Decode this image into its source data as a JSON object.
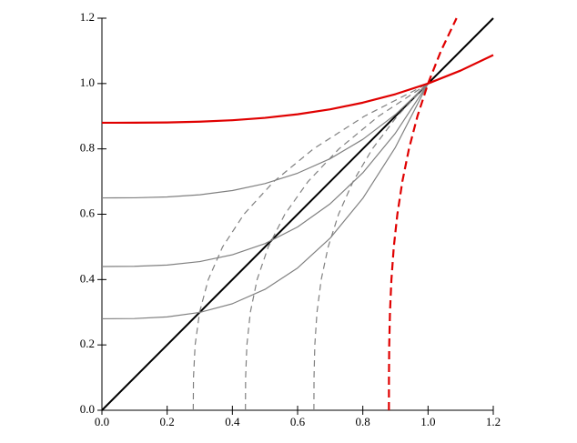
{
  "chart_data": {
    "type": "line",
    "xlim": [
      0,
      1.2
    ],
    "ylim": [
      0,
      1.2
    ],
    "xticks": [
      {
        "value": 0,
        "label": "0.0"
      },
      0.2,
      0.4,
      0.6,
      0.8,
      {
        "value": 1,
        "label": "1.0"
      },
      1.2
    ],
    "yticks": [
      {
        "value": 0,
        "label": "0.0"
      },
      0.2,
      0.4,
      0.6,
      0.8,
      {
        "value": 1,
        "label": "1.0"
      },
      1.2
    ],
    "series": [
      {
        "color": "#000000",
        "linewidth": 2,
        "dashed": false,
        "x": [
          0,
          1.2
        ],
        "values": [
          0,
          1.2
        ]
      },
      {
        "color": "#808080",
        "linewidth": 1.2,
        "dashed": false,
        "x": [
          0,
          0.1,
          0.2,
          0.3,
          0.4,
          0.5,
          0.6,
          0.7,
          0.8,
          0.9,
          1
        ],
        "values": [
          0.65,
          0.65035,
          0.6528,
          0.65945,
          0.6724,
          0.69375,
          0.7256,
          0.77005,
          0.8292,
          0.90515,
          1
        ]
      },
      {
        "color": "#808080",
        "linewidth": 1.2,
        "dashed": false,
        "x": [
          0,
          0.1,
          0.2,
          0.3,
          0.4,
          0.5,
          0.6,
          0.7,
          0.8,
          0.9,
          1
        ],
        "values": [
          0.44,
          0.44056,
          0.44448,
          0.45512,
          0.47584,
          0.51,
          0.56096,
          0.63208,
          0.72672,
          0.84824,
          1
        ]
      },
      {
        "color": "#808080",
        "linewidth": 1.2,
        "dashed": false,
        "x": [
          0,
          0.1,
          0.2,
          0.3,
          0.4,
          0.5,
          0.6,
          0.7,
          0.8,
          0.9,
          1
        ],
        "values": [
          0.28,
          0.28072,
          0.28576,
          0.29944,
          0.32608,
          0.37,
          0.43552,
          0.52696,
          0.64864,
          0.80488,
          1
        ]
      },
      {
        "color": "#808080",
        "linewidth": 1.2,
        "dashed": true,
        "x": [
          0.65,
          0.65035,
          0.6528,
          0.65945,
          0.6724,
          0.69375,
          0.7256,
          0.77005,
          0.8292,
          0.90515,
          1
        ],
        "values": [
          0,
          0.1,
          0.2,
          0.3,
          0.4,
          0.5,
          0.6,
          0.7,
          0.8,
          0.9,
          1
        ]
      },
      {
        "color": "#808080",
        "linewidth": 1.2,
        "dashed": true,
        "x": [
          0.44,
          0.44056,
          0.44448,
          0.45512,
          0.47584,
          0.51,
          0.56096,
          0.63208,
          0.72672,
          0.84824,
          1
        ],
        "values": [
          0,
          0.1,
          0.2,
          0.3,
          0.4,
          0.5,
          0.6,
          0.7,
          0.8,
          0.9,
          1
        ]
      },
      {
        "color": "#808080",
        "linewidth": 1.2,
        "dashed": true,
        "x": [
          0.28,
          0.28072,
          0.28576,
          0.29944,
          0.32608,
          0.37,
          0.43552,
          0.52696,
          0.64864,
          0.80488,
          1
        ],
        "values": [
          0,
          0.1,
          0.2,
          0.3,
          0.4,
          0.5,
          0.6,
          0.7,
          0.8,
          0.9,
          1
        ]
      },
      {
        "color": "#e00000",
        "linewidth": 2.2,
        "dashed": false,
        "x": [
          0,
          0.1,
          0.2,
          0.3,
          0.4,
          0.5,
          0.6,
          0.7,
          0.8,
          0.9,
          1,
          1.1,
          1.2
        ],
        "values": [
          0.88,
          0.88012,
          0.88096,
          0.88324,
          0.88768,
          0.895,
          0.90592,
          0.92116,
          0.94144,
          0.96748,
          1,
          1.03972,
          1.08736
        ]
      },
      {
        "color": "#e00000",
        "linewidth": 2.2,
        "dashed": true,
        "x": [
          0.88,
          0.88012,
          0.88096,
          0.88324,
          0.88768,
          0.895,
          0.90592,
          0.92116,
          0.94144,
          0.96748,
          1,
          1.03972,
          1.08736
        ],
        "values": [
          0,
          0.1,
          0.2,
          0.3,
          0.4,
          0.5,
          0.6,
          0.7,
          0.8,
          0.9,
          1,
          1.1,
          1.2
        ]
      }
    ]
  }
}
